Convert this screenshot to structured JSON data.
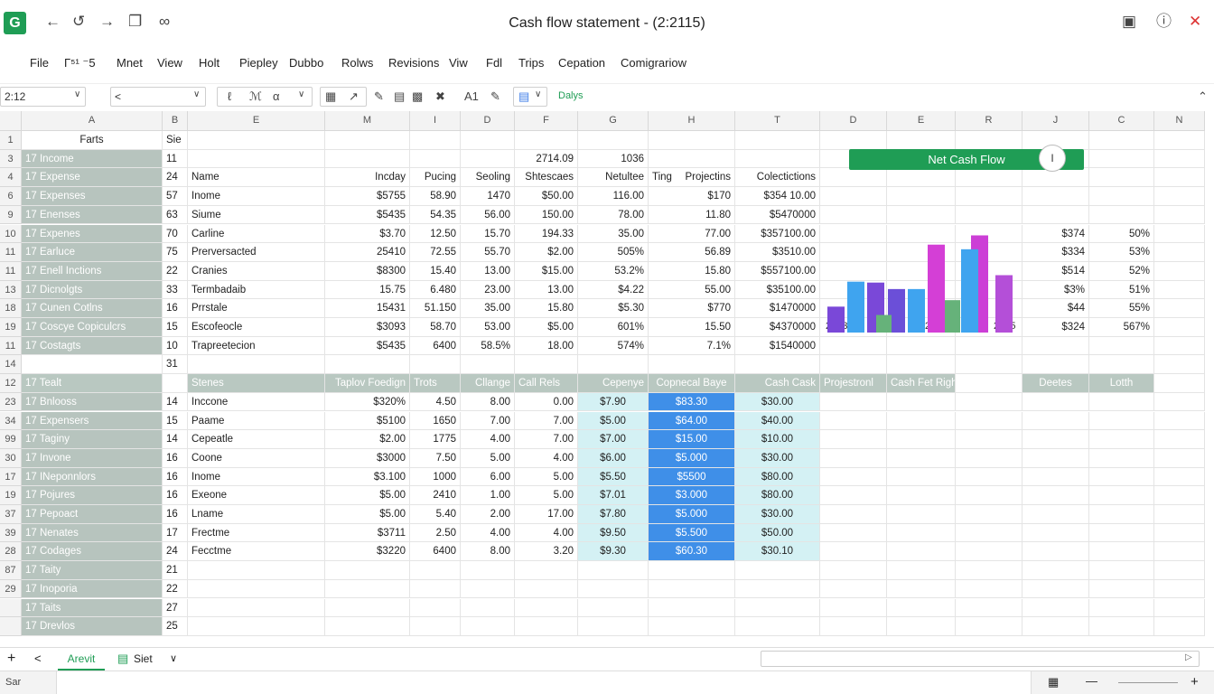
{
  "app": {
    "logo_letter": "G",
    "title": "Cash flow statement - (2:2115)"
  },
  "titlebar_icons": [
    "arrow-left-icon",
    "redo-icon",
    "arrow-right-icon",
    "copy-icon",
    "link-icon",
    "restore-icon",
    "info-icon",
    "close-icon"
  ],
  "menu": [
    "File",
    "Γ⁵¹ ⁻5",
    "Mnet",
    "View",
    "Holt",
    "Piepley",
    "Dubbo",
    "Rolws",
    "Revisions",
    "Viw",
    "Fdl",
    "Trips",
    "Cepation",
    "Comigrariow"
  ],
  "toolbar": {
    "cell_ref": "2:12",
    "font_box": "<",
    "font_size": "A1",
    "status_text": "Dalys"
  },
  "columns": [
    "A",
    "B",
    "E",
    "M",
    "I",
    "D",
    "F",
    "G",
    "H",
    "T",
    "D",
    "E",
    "R",
    "J",
    "C",
    "N"
  ],
  "row_numbers": [
    "1",
    "3",
    "4",
    "6",
    "9",
    "10",
    "11",
    "11",
    "13",
    "18",
    "19",
    "11",
    "14",
    "12",
    "23",
    "34",
    "99",
    "30",
    "17",
    "19",
    "37",
    "39",
    "28",
    "87",
    "29"
  ],
  "sheet": {
    "a_col": [
      "Farts",
      "17 Income",
      "17 Expense",
      "17 Expenses",
      "17 Enenses",
      "17 Expenes",
      "17 Earluce",
      "17 Enell Inctions",
      "17 Dicnolgts",
      "17 Cunen Cotlns",
      "17 Coscye Copiculcrs",
      "17 Costagts",
      "",
      "17 Tealt",
      "17 Bnlooss",
      "17 Expensers",
      "17 Taginy",
      "17 Invone",
      "17 INeponnlors",
      "17 Pojures",
      "17 Pepoact",
      "17 Nenates",
      "17 Codages",
      "17 Taity",
      "17 Inoporia",
      "17 Taits",
      "17 Drevlos"
    ],
    "b_col": [
      "Sie",
      "11",
      "24",
      "57",
      "63",
      "70",
      "75",
      "22",
      "33",
      "16",
      "15",
      "10",
      "31",
      "",
      "14",
      "15",
      "14",
      "16",
      "16",
      "16",
      "16",
      "17",
      "24",
      "21",
      "22",
      "27",
      "25"
    ],
    "upper_header": {
      "e": "Name",
      "m": "Incday",
      "i": "Pucing",
      "d": "Seoling",
      "f_top": "2714.09",
      "f": "Shtescaes",
      "g_top": "1036",
      "g": "Netultee",
      "h1": "Ting",
      "h2": "Projectins",
      "t": "Colectictions"
    },
    "upper_rows": [
      [
        "Inome",
        "$5755",
        "58.90",
        "1470",
        "$50.00",
        "116.00",
        "$170",
        "$354 10.00"
      ],
      [
        "Siume",
        "$5435",
        "54.35",
        "56.00",
        "150.00",
        "78.00",
        "11.80",
        "$5470000"
      ],
      [
        "Carline",
        "$3.70",
        "12.50",
        "15.70",
        "194.33",
        "35.00",
        "77.00",
        "$357100.00"
      ],
      [
        "Prerversacted",
        "25410",
        "72.55",
        "55.70",
        "$2.00",
        "505%",
        "56.89",
        "$3510.00"
      ],
      [
        "Cranies",
        "$8300",
        "15.40",
        "13.00",
        "$15.00",
        "53.2%",
        "15.80",
        "$557100.00"
      ],
      [
        "Termbadaib",
        "15.75",
        "6.480",
        "23.00",
        "13.00",
        "$4.22",
        "55.00",
        "$35100.00"
      ],
      [
        "Prrstale",
        "15431",
        "51.150",
        "35.00",
        "15.80",
        "$5.30",
        "$770",
        "$1470000"
      ],
      [
        "Escofeocle",
        "$3093",
        "58.70",
        "53.00",
        "$5.00",
        "601%",
        "15.50",
        "$4370000"
      ],
      [
        "Trapreetecion",
        "$5435",
        "6400",
        "58.5%",
        "18.00",
        "574%",
        "7.1%",
        "$1540000"
      ]
    ],
    "chart_years": [
      "2013",
      "2018",
      "2015"
    ],
    "right_rows": [
      [
        "$374",
        "50%"
      ],
      [
        "$334",
        "53%"
      ],
      [
        "$514",
        "52%"
      ],
      [
        "$3%",
        "51%"
      ],
      [
        "$44",
        "55%"
      ],
      [
        "$324",
        "567%"
      ]
    ],
    "lower_header": {
      "e": "Stenes",
      "m": "Taplov Foedign",
      "i": "Trots",
      "d": "Cllange",
      "f": "Call Rels",
      "g": "Cepenye",
      "h": "Copnecal Baye",
      "t": "Cash Cask",
      "d2": "Projestronl",
      "er": "Cash Fet Right Tool",
      "j": "Deetes",
      "c": "Lotth"
    },
    "lower_rows": [
      [
        "Inccone",
        "$320%",
        "4.50",
        "8.00",
        "0.00",
        "$7.90",
        "$83.30",
        "$30.00"
      ],
      [
        "Paame",
        "$5100",
        "1650",
        "7.00",
        "7.00",
        "$5.00",
        "$64.00",
        "$40.00"
      ],
      [
        "Cepeatle",
        "$2.00",
        "1775",
        "4.00",
        "7.00",
        "$7.00",
        "$15.00",
        "$10.00"
      ],
      [
        "Coone",
        "$3000",
        "7.50",
        "5.00",
        "4.00",
        "$6.00",
        "$5.000",
        "$30.00"
      ],
      [
        "Inome",
        "$3.100",
        "1000",
        "6.00",
        "5.00",
        "$5.50",
        "$5500",
        "$80.00"
      ],
      [
        "Exeone",
        "$5.00",
        "2410",
        "1.00",
        "5.00",
        "$7.01",
        "$3.000",
        "$80.00"
      ],
      [
        "Lname",
        "$5.00",
        "5.40",
        "2.00",
        "17.00",
        "$7.80",
        "$5.000",
        "$30.00"
      ],
      [
        "Frectme",
        "$3711",
        "2.50",
        "4.00",
        "4.00",
        "$9.50",
        "$5.500",
        "$50.00"
      ],
      [
        "Fecctme",
        "$3220",
        "6400",
        "8.00",
        "3.20",
        "$9.30",
        "$60.30",
        "$30.10"
      ]
    ]
  },
  "chart": {
    "title": "Net Cash Flow",
    "knob": "I"
  },
  "chart_data": {
    "type": "bar",
    "title": "Net Cash Flow",
    "categories": [
      "2013",
      "",
      "",
      "",
      "",
      "",
      "2018",
      "",
      "",
      "",
      "2015"
    ],
    "series": [
      {
        "values": [
          28,
          55,
          54,
          47,
          47,
          50,
          95,
          40,
          105,
          90,
          62
        ]
      },
      {
        "values": [
          0,
          0,
          0,
          0,
          0,
          0,
          0,
          0,
          0,
          0,
          0
        ]
      }
    ],
    "colors": [
      "#7a48d8",
      "#3fa4ef",
      "#7a48d8",
      "#6b4fd8",
      "#3fa4ef",
      "#8d4bd6",
      "#d43fd6",
      "#4bb4ee",
      "#cc3fd6",
      "#3fa4ef",
      "#b44fd8"
    ],
    "accent_values": {
      "green1": 19,
      "green2": 35
    },
    "ylim": [
      0,
      125
    ]
  },
  "tabs": {
    "add": "+",
    "prev": "<",
    "sheet1": "Arevit",
    "sheet2": "Siet",
    "dropdown": "∨"
  },
  "status": {
    "left": "Sar",
    "zoom": ""
  },
  "colors": {
    "brand": "#1f9d55",
    "header_gray": "#b9c8c1",
    "teal": "#d4f1f4",
    "blue": "#3f8fe8"
  }
}
